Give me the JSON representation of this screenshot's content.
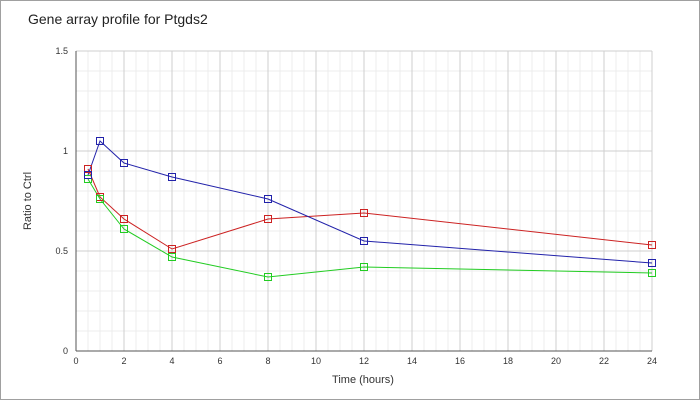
{
  "chart_data": {
    "type": "line",
    "title": "Gene array profile for Ptgds2",
    "xlabel": "Time (hours)",
    "ylabel": "Ratio to Ctrl",
    "xlim": [
      0,
      24
    ],
    "ylim": [
      0,
      1.5
    ],
    "x_ticks": [
      0,
      2,
      4,
      6,
      8,
      10,
      12,
      14,
      16,
      18,
      20,
      22,
      24
    ],
    "x_tick_labels": [
      "0",
      "2",
      "4",
      "6",
      "8",
      "10",
      "12",
      "14",
      "16",
      "18",
      "20",
      "22",
      "24"
    ],
    "y_ticks": [
      0,
      0.5,
      1,
      1.5
    ],
    "y_tick_labels": [
      "0",
      "0.5",
      "1",
      "1.5"
    ],
    "grid": true,
    "marker": "square",
    "x": [
      0.5,
      1,
      2,
      4,
      8,
      12,
      24
    ],
    "series": [
      {
        "color": "#cc2222",
        "values": [
          0.91,
          0.77,
          0.66,
          0.51,
          0.66,
          0.69,
          0.53
        ]
      },
      {
        "color": "#22cc22",
        "values": [
          0.86,
          0.76,
          0.61,
          0.47,
          0.37,
          0.42,
          0.39
        ]
      },
      {
        "color": "#2222aa",
        "values": [
          0.88,
          1.05,
          0.94,
          0.87,
          0.76,
          0.55,
          0.44
        ]
      }
    ]
  }
}
